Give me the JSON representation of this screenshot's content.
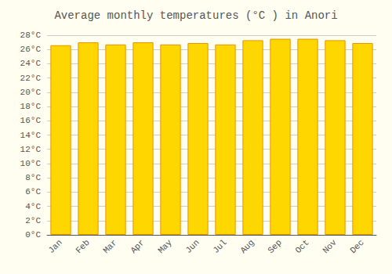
{
  "chart_data": {
    "type": "bar",
    "title": "Average monthly temperatures (°C ) in Anori",
    "categories": [
      "Jan",
      "Feb",
      "Mar",
      "Apr",
      "May",
      "Jun",
      "Jul",
      "Aug",
      "Sep",
      "Oct",
      "Nov",
      "Dec"
    ],
    "values": [
      26.6,
      27.0,
      26.7,
      27.0,
      26.7,
      26.9,
      26.7,
      27.3,
      27.5,
      27.5,
      27.3,
      26.9
    ],
    "color": "#FFD700",
    "ylim": [
      0,
      28
    ],
    "yticks": [
      {
        "value": 0,
        "label": "0°C"
      },
      {
        "value": 2,
        "label": "2°C"
      },
      {
        "value": 4,
        "label": "4°C"
      },
      {
        "value": 6,
        "label": "6°C"
      },
      {
        "value": 8,
        "label": "8°C"
      },
      {
        "value": 10,
        "label": "10°C"
      },
      {
        "value": 12,
        "label": "12°C"
      },
      {
        "value": 14,
        "label": "14°C"
      },
      {
        "value": 16,
        "label": "16°C"
      },
      {
        "value": 18,
        "label": "18°C"
      },
      {
        "value": 20,
        "label": "20°C"
      },
      {
        "value": 22,
        "label": "22°C"
      },
      {
        "value": 24,
        "label": "24°C"
      },
      {
        "value": 26,
        "label": "26°C"
      },
      {
        "value": 28,
        "label": "28°C"
      }
    ],
    "grid": true
  }
}
